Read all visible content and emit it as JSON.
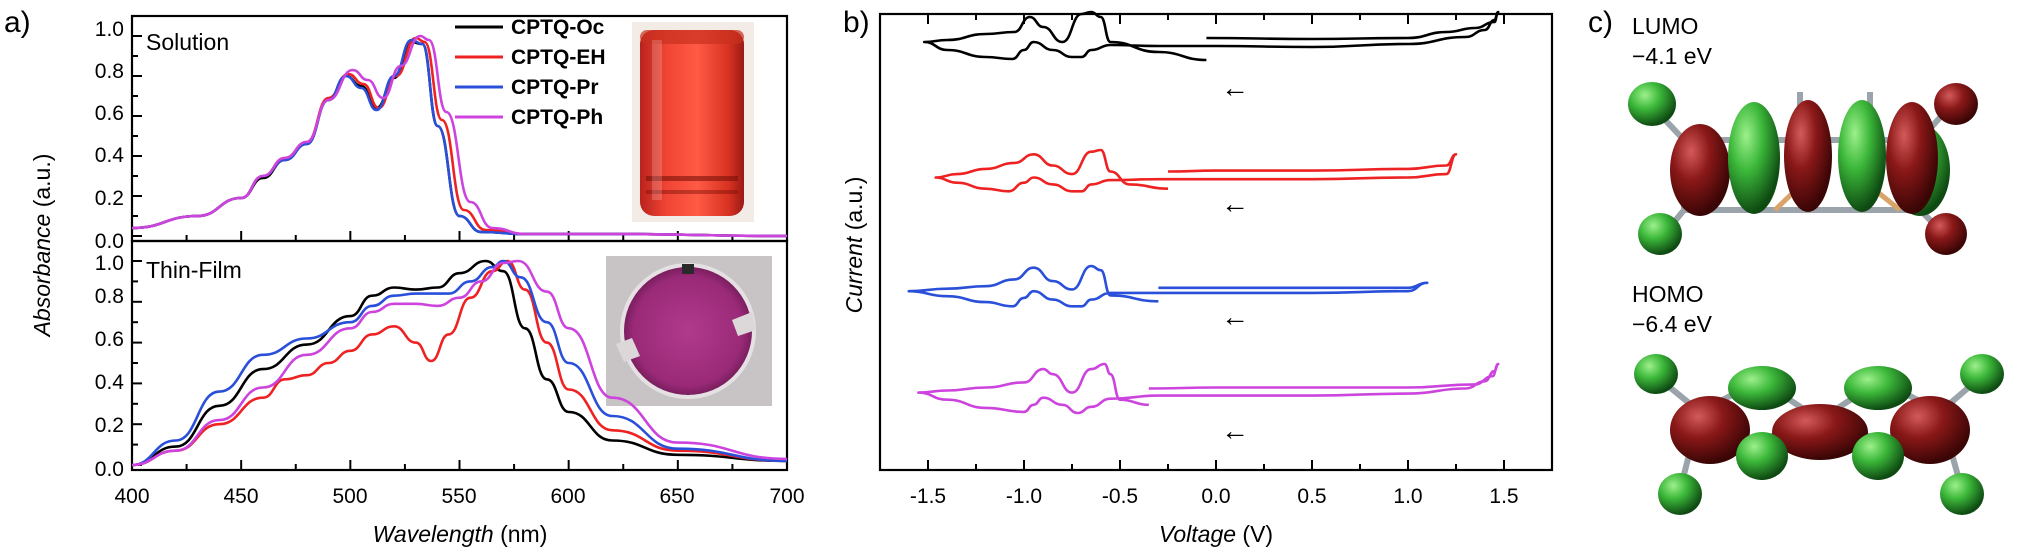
{
  "panel_labels": {
    "a": "a)",
    "b": "b)",
    "c": "c)"
  },
  "colors": {
    "Oc": "#000000",
    "EH": "#ee2222",
    "Pr": "#2a4fd9",
    "Ph": "#cc44dd"
  },
  "chart_data": [
    {
      "type": "line",
      "panel": "a-top",
      "title": "Solution",
      "ylabel": "Absorbance (a.u.)",
      "ylabel_italic": "Absorbance",
      "ylabel_unit": " (a.u.)",
      "xlim": [
        400,
        700
      ],
      "ylim": [
        0,
        1.05
      ],
      "yticks": [
        "0.0",
        "0.2",
        "0.4",
        "0.6",
        "0.8",
        "1.0"
      ],
      "legend": "top-right",
      "series": [
        {
          "name": "CPTQ-Oc",
          "color": "#000000",
          "x": [
            400,
            430,
            450,
            460,
            470,
            480,
            490,
            498,
            505,
            512,
            520,
            528,
            533,
            540,
            550,
            560,
            580,
            620,
            700
          ],
          "y": [
            0.04,
            0.1,
            0.19,
            0.29,
            0.38,
            0.46,
            0.68,
            0.8,
            0.75,
            0.64,
            0.79,
            0.97,
            0.96,
            0.55,
            0.1,
            0.02,
            0.01,
            0.01,
            0.0
          ]
        },
        {
          "name": "CPTQ-EH",
          "color": "#ee2222",
          "x": [
            400,
            430,
            450,
            460,
            470,
            480,
            490,
            499,
            506,
            513,
            521,
            530,
            534,
            542,
            552,
            562,
            580,
            620,
            700
          ],
          "y": [
            0.04,
            0.1,
            0.19,
            0.3,
            0.39,
            0.47,
            0.69,
            0.81,
            0.76,
            0.64,
            0.8,
            0.99,
            0.97,
            0.58,
            0.13,
            0.03,
            0.01,
            0.01,
            0.0
          ]
        },
        {
          "name": "CPTQ-Pr",
          "color": "#2a4fd9",
          "x": [
            400,
            430,
            450,
            460,
            470,
            480,
            490,
            498,
            505,
            512,
            520,
            528,
            533,
            540,
            550,
            560,
            580,
            620,
            700
          ],
          "y": [
            0.04,
            0.1,
            0.19,
            0.3,
            0.38,
            0.46,
            0.68,
            0.8,
            0.74,
            0.63,
            0.8,
            0.98,
            0.96,
            0.55,
            0.1,
            0.02,
            0.01,
            0.01,
            0.0
          ]
        },
        {
          "name": "CPTQ-Ph",
          "color": "#cc44dd",
          "x": [
            400,
            430,
            450,
            460,
            470,
            480,
            490,
            501,
            508,
            515,
            523,
            532,
            536,
            544,
            555,
            565,
            580,
            620,
            700
          ],
          "y": [
            0.04,
            0.1,
            0.19,
            0.3,
            0.39,
            0.47,
            0.68,
            0.83,
            0.78,
            0.69,
            0.85,
            1.0,
            0.98,
            0.62,
            0.17,
            0.04,
            0.01,
            0.01,
            0.0
          ]
        }
      ]
    },
    {
      "type": "line",
      "panel": "a-bottom",
      "title": "Thin-Film",
      "xlabel": "Wavelength (nm)",
      "xlabel_italic": "Wavelength",
      "xlabel_unit": " (nm)",
      "xlim": [
        400,
        700
      ],
      "ylim": [
        0,
        1.05
      ],
      "xticks": [
        "400",
        "450",
        "500",
        "550",
        "600",
        "650",
        "700"
      ],
      "yticks": [
        "0.0",
        "0.2",
        "0.4",
        "0.6",
        "0.8",
        "1.0"
      ],
      "series": [
        {
          "name": "CPTQ-Oc",
          "color": "#000000",
          "x": [
            400,
            420,
            440,
            460,
            480,
            500,
            510,
            520,
            530,
            540,
            550,
            562,
            570,
            580,
            590,
            600,
            620,
            650,
            700
          ],
          "y": [
            0.0,
            0.09,
            0.29,
            0.47,
            0.59,
            0.73,
            0.83,
            0.87,
            0.86,
            0.87,
            0.94,
            1.0,
            0.95,
            0.67,
            0.42,
            0.26,
            0.12,
            0.05,
            0.02
          ]
        },
        {
          "name": "CPTQ-EH",
          "color": "#ee2222",
          "x": [
            400,
            420,
            440,
            460,
            470,
            480,
            490,
            500,
            510,
            520,
            530,
            537,
            545,
            555,
            565,
            572,
            580,
            590,
            600,
            620,
            650,
            700
          ],
          "y": [
            0.0,
            0.07,
            0.2,
            0.33,
            0.42,
            0.44,
            0.5,
            0.56,
            0.64,
            0.68,
            0.6,
            0.51,
            0.64,
            0.82,
            0.95,
            1.0,
            0.86,
            0.6,
            0.37,
            0.17,
            0.07,
            0.02
          ]
        },
        {
          "name": "CPTQ-Pr",
          "color": "#2a4fd9",
          "x": [
            400,
            420,
            440,
            460,
            480,
            500,
            510,
            520,
            530,
            545,
            555,
            565,
            570,
            578,
            590,
            600,
            620,
            650,
            700
          ],
          "y": [
            0.0,
            0.12,
            0.36,
            0.54,
            0.62,
            0.7,
            0.78,
            0.83,
            0.84,
            0.84,
            0.9,
            0.97,
            1.0,
            0.92,
            0.7,
            0.5,
            0.24,
            0.08,
            0.02
          ]
        },
        {
          "name": "CPTQ-Ph",
          "color": "#cc44dd",
          "x": [
            400,
            420,
            440,
            460,
            480,
            500,
            510,
            520,
            530,
            540,
            550,
            560,
            570,
            577,
            590,
            600,
            620,
            650,
            700
          ],
          "y": [
            0.0,
            0.07,
            0.22,
            0.38,
            0.54,
            0.67,
            0.75,
            0.79,
            0.79,
            0.78,
            0.82,
            0.9,
            0.99,
            1.0,
            0.85,
            0.67,
            0.33,
            0.11,
            0.03
          ]
        }
      ]
    },
    {
      "type": "line",
      "panel": "b",
      "xlabel": "Voltage (V)",
      "xlabel_italic": "Voltage",
      "xlabel_unit": " (V)",
      "ylabel": "Current (a.u.)",
      "ylabel_italic": "Current",
      "ylabel_unit": " (a.u.)",
      "xlim": [
        -1.75,
        1.75
      ],
      "xticks": [
        "-1.5",
        "-1.0",
        "-0.5",
        "0.0",
        "0.5",
        "1.0",
        "1.5"
      ],
      "xtick_values": [
        -1.5,
        -1.0,
        -0.5,
        0.0,
        0.5,
        1.0,
        1.5
      ],
      "annotation": "←",
      "series": [
        {
          "name": "CPTQ-Oc",
          "color": "#000000",
          "x": [
            -0.05,
            -0.3,
            -0.55,
            -0.6,
            -0.65,
            -0.7,
            -0.8,
            -0.9,
            -0.97,
            -1.05,
            -1.2,
            -1.4,
            -1.52,
            -1.4,
            -1.2,
            -1.06,
            -1.0,
            -0.95,
            -0.85,
            -0.75,
            -0.7,
            -0.65,
            -0.55,
            -0.3,
            0.0,
            0.5,
            1.0,
            1.3,
            1.4,
            1.45,
            1.47,
            1.45,
            1.35,
            1.2,
            1.0,
            0.5,
            -0.05
          ],
          "y": [
            0.52,
            0.6,
            0.7,
            0.95,
            1.0,
            0.98,
            0.7,
            0.85,
            0.95,
            0.8,
            0.78,
            0.72,
            0.7,
            0.62,
            0.55,
            0.53,
            0.62,
            0.7,
            0.62,
            0.55,
            0.55,
            0.62,
            0.67,
            0.66,
            0.66,
            0.65,
            0.68,
            0.75,
            0.82,
            0.92,
            1.0,
            0.9,
            0.84,
            0.8,
            0.74,
            0.73,
            0.74
          ]
        },
        {
          "name": "CPTQ-EH",
          "color": "#ee2222",
          "x": [
            -0.25,
            -0.45,
            -0.55,
            -0.6,
            -0.65,
            -0.75,
            -0.85,
            -0.95,
            -1.05,
            -1.2,
            -1.35,
            -1.46,
            -1.35,
            -1.2,
            -1.08,
            -1.0,
            -0.95,
            -0.85,
            -0.75,
            -0.7,
            -0.65,
            -0.55,
            -0.3,
            0.0,
            0.5,
            1.0,
            1.2,
            1.25,
            1.2,
            1.0,
            0.5,
            0.0,
            -0.25
          ],
          "y": [
            0.55,
            0.6,
            0.75,
            1.0,
            0.98,
            0.72,
            0.82,
            0.95,
            0.85,
            0.78,
            0.72,
            0.68,
            0.62,
            0.55,
            0.52,
            0.62,
            0.68,
            0.6,
            0.52,
            0.52,
            0.6,
            0.65,
            0.66,
            0.66,
            0.66,
            0.68,
            0.72,
            0.95,
            0.82,
            0.78,
            0.76,
            0.76,
            0.75
          ]
        },
        {
          "name": "CPTQ-Pr",
          "color": "#2a4fd9",
          "x": [
            -0.3,
            -0.55,
            -0.6,
            -0.65,
            -0.75,
            -0.85,
            -0.95,
            -1.05,
            -1.2,
            -1.4,
            -1.6,
            -1.4,
            -1.2,
            -1.06,
            -1.0,
            -0.95,
            -0.85,
            -0.75,
            -0.7,
            -0.65,
            -0.55,
            -0.3,
            0.0,
            0.5,
            1.0,
            1.1,
            1.0,
            0.5,
            0.0,
            -0.3
          ],
          "y": [
            0.58,
            0.65,
            0.95,
            1.0,
            0.72,
            0.82,
            0.98,
            0.84,
            0.76,
            0.73,
            0.7,
            0.64,
            0.57,
            0.52,
            0.62,
            0.7,
            0.6,
            0.52,
            0.52,
            0.6,
            0.68,
            0.68,
            0.68,
            0.68,
            0.7,
            0.8,
            0.74,
            0.74,
            0.74,
            0.74
          ]
        },
        {
          "name": "CPTQ-Ph",
          "color": "#cc44dd",
          "x": [
            -0.35,
            -0.5,
            -0.55,
            -0.58,
            -0.65,
            -0.75,
            -0.85,
            -0.9,
            -1.0,
            -1.2,
            -1.4,
            -1.55,
            -1.4,
            -1.2,
            -1.0,
            -0.95,
            -0.9,
            -0.8,
            -0.72,
            -0.65,
            -0.55,
            -0.3,
            0.0,
            0.5,
            1.0,
            1.3,
            1.4,
            1.45,
            1.47,
            1.44,
            1.35,
            1.0,
            0.5,
            0.0,
            -0.35
          ],
          "y": [
            0.6,
            0.65,
            0.9,
            1.0,
            0.95,
            0.72,
            0.9,
            0.95,
            0.82,
            0.77,
            0.74,
            0.72,
            0.65,
            0.57,
            0.53,
            0.6,
            0.67,
            0.6,
            0.52,
            0.58,
            0.66,
            0.69,
            0.69,
            0.69,
            0.71,
            0.76,
            0.83,
            0.93,
            1.0,
            0.88,
            0.8,
            0.77,
            0.77,
            0.77,
            0.76
          ]
        }
      ]
    }
  ],
  "orbitals": {
    "lumo_label": "LUMO",
    "lumo_energy": "−4.1 eV",
    "homo_label": "HOMO",
    "homo_energy": "−6.4 eV"
  }
}
